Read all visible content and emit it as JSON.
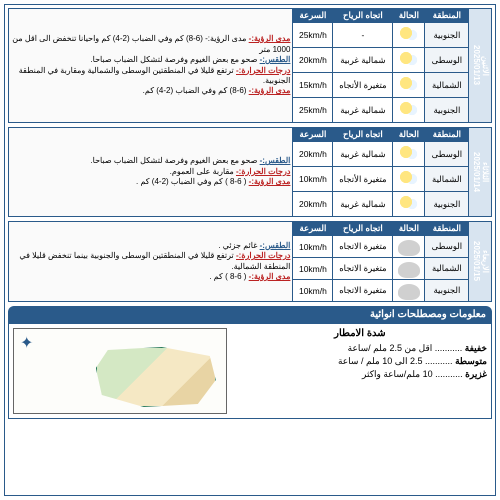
{
  "headers": {
    "region": "المنطقة",
    "state": "الحالة",
    "wind": "اتجاه الرياح",
    "speed": "السرعة"
  },
  "labels": {
    "weather": "الطقس:-",
    "temp": "درجات الحرارة:-",
    "vis": "مدى الرؤية:-"
  },
  "days": [
    {
      "date": "الاثنين\n2025/01/13",
      "rows": [
        {
          "region": "الجنوبية",
          "icon": "sun",
          "wind": "-",
          "speed": "25km/h"
        },
        {
          "region": "الوسطى",
          "icon": "sun",
          "wind": "شمالية غربية",
          "speed": "20km/h"
        },
        {
          "region": "الشمالية",
          "icon": "sun",
          "wind": "متغيرة الأتجاه",
          "speed": "15km/h"
        },
        {
          "region": "الجنوبية",
          "icon": "sun",
          "wind": "شمالية غربية",
          "speed": "25km/h"
        }
      ],
      "desc_top": "مدى الرؤية:- (6-8) كم وفي الضباب (2-4) كم واحيانا تنخفض الى اقل من 1000 متر",
      "desc": "صحو مع بعض الغيوم وفرصة لتشكل الضباب صباحا.\nترتفع قليلا في المنطقتين الوسطى والشمالية ومقاربة في المنطقة الجنوبية.\n(6-8) كم وفي الضباب (2-4) كم."
    },
    {
      "date": "الثلاثاء\n2025/01/14",
      "rows": [
        {
          "region": "الوسطى",
          "icon": "sun",
          "wind": "شمالية غربية",
          "speed": "20km/h"
        },
        {
          "region": "الشمالية",
          "icon": "sun",
          "wind": "متغيرة الأتجاه",
          "speed": "10km/h"
        },
        {
          "region": "الجنوبية",
          "icon": "sun",
          "wind": "شمالية غربية",
          "speed": "20km/h"
        }
      ],
      "desc": "صحو مع بعض الغيوم وفرصة لتشكل الضباب صباحا.\nمقاربة على العموم.\n( 6-8 ) كم وفي الضباب (2-4) كم ."
    },
    {
      "date": "الاربعاء\n2025/01/15",
      "rows": [
        {
          "region": "الوسطى",
          "icon": "cloudy",
          "wind": "متغيرة الاتجاه",
          "speed": "10km/h"
        },
        {
          "region": "الشمالية",
          "icon": "cloudy",
          "wind": "متغيرة الاتجاه",
          "speed": "10km/h"
        },
        {
          "region": "الجنوبية",
          "icon": "cloudy",
          "wind": "متغيرة الاتجاه",
          "speed": "10km/h"
        }
      ],
      "desc": "غائم جزئي .\nترتفع قليلا في المنطقتين الوسطى والجنوبية بينما تنخفض قليلا في المنطقة الشمالية.\n( 6-8 ) كم ."
    }
  ],
  "info_title": "معلومات ومصطلحات انوائية",
  "rain": {
    "title": "شدة الامطار",
    "rows": [
      {
        "k": "خفيفة",
        "v": "........... اقل من 2.5 ملم /ساعة"
      },
      {
        "k": "متوسطة",
        "v": "........... 2.5 الى 10 ملم / ساعة"
      },
      {
        "k": "غزيرة",
        "v": "........... 10 ملم/ساعة واكثر"
      }
    ]
  }
}
